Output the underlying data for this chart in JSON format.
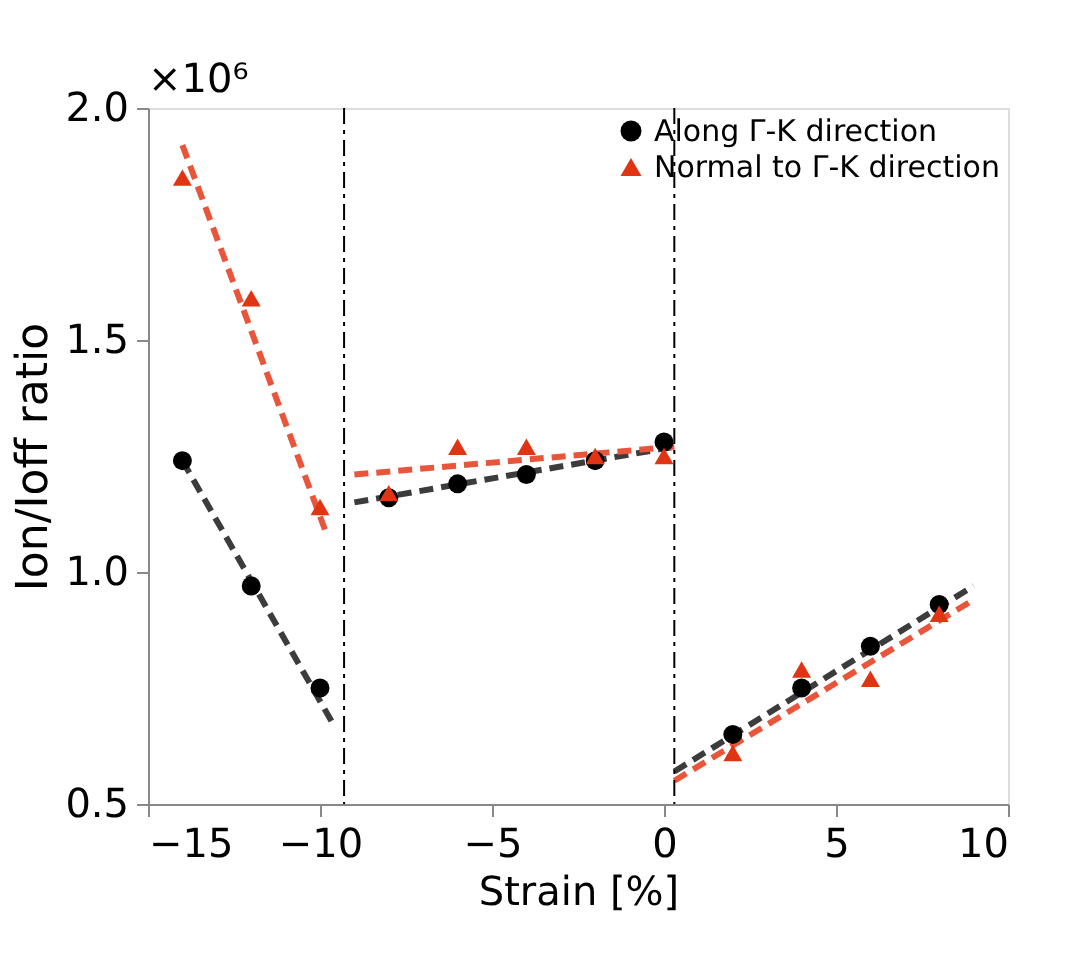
{
  "chart_data": {
    "type": "scatter",
    "xlabel": "Strain [%]",
    "ylabel": "Ion/Ioff ratio",
    "annotations": [
      "×10⁶"
    ],
    "xlim": [
      -15,
      10
    ],
    "xticks": [
      -15,
      -10,
      -5,
      0,
      5,
      10
    ],
    "ylim": [
      0.5,
      2.0
    ],
    "yticks": [
      0.5,
      {
        "value": 1,
        "label": "1.0"
      },
      1.5,
      {
        "value": 2,
        "label": "2.0"
      }
    ],
    "grid": false,
    "legend": "top right",
    "ref_lines": [
      {
        "axis": "x",
        "value": -9.3,
        "line_style": "dashdot",
        "color": "#000000"
      },
      {
        "axis": "x",
        "value": 0.3,
        "line_style": "dashdot",
        "color": "#000000"
      }
    ],
    "series": [
      {
        "name": "Along Γ-K direction",
        "marker": "circle",
        "color": "#000000",
        "x": [
          -14,
          -12,
          -10,
          -8,
          -6,
          -4,
          -2,
          0,
          2,
          4,
          6,
          8
        ],
        "values": [
          1.24,
          0.97,
          0.75,
          1.16,
          1.19,
          1.21,
          1.24,
          1.28,
          0.65,
          0.75,
          0.84,
          0.93
        ]
      },
      {
        "name": "Normal to Γ-K direction",
        "marker": "triangle",
        "color": "#e03412",
        "x": [
          -14,
          -12,
          -10,
          -8,
          -6,
          -4,
          -2,
          0,
          2,
          4,
          6,
          8
        ],
        "values": [
          1.85,
          1.59,
          1.14,
          1.17,
          1.27,
          1.27,
          1.25,
          1.25,
          0.61,
          0.79,
          0.77,
          0.91
        ]
      },
      {
        "type": "line",
        "line_style": "dashed",
        "color": "#3c3c3c",
        "x": [
          -14,
          -9.6
        ],
        "values": [
          1.24,
          0.67
        ]
      },
      {
        "type": "line",
        "line_style": "dashed",
        "color": "#3c3c3c",
        "x": [
          -9,
          0.3
        ],
        "values": [
          1.15,
          1.27
        ]
      },
      {
        "type": "line",
        "line_style": "dashed",
        "color": "#3c3c3c",
        "x": [
          0.3,
          9
        ],
        "values": [
          0.57,
          0.97
        ]
      },
      {
        "type": "line",
        "line_style": "dashed",
        "color": "#e8553a",
        "x": [
          -14,
          -9.8
        ],
        "values": [
          1.92,
          1.08
        ]
      },
      {
        "type": "line",
        "line_style": "dashed",
        "color": "#e8553a",
        "x": [
          -9,
          0.3
        ],
        "values": [
          1.21,
          1.27
        ]
      },
      {
        "type": "line",
        "line_style": "dashed",
        "color": "#e8553a",
        "x": [
          0.3,
          9
        ],
        "values": [
          0.55,
          0.94
        ]
      }
    ]
  }
}
